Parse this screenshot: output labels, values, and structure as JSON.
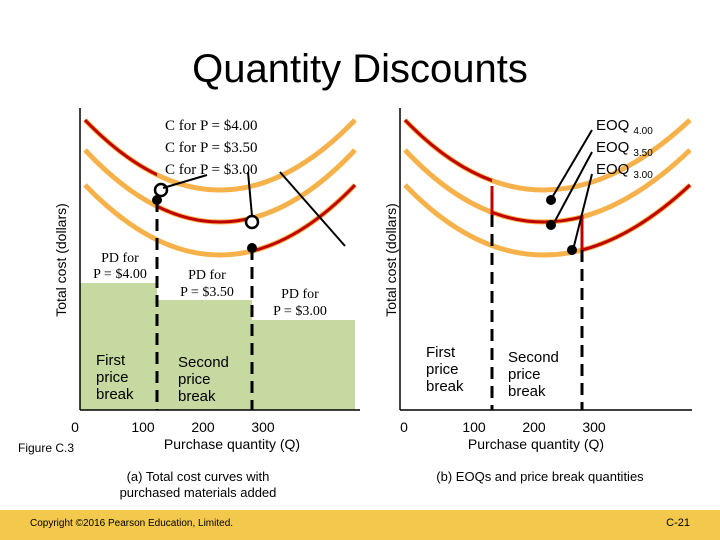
{
  "title": "Quantity Discounts",
  "figure_label": "Figure C.3",
  "panel_a": {
    "y_axis_label": "Total cost (dollars)",
    "curve_labels": [
      "C for P = $4.00",
      "C for P = $3.50",
      "C for P = $3.00"
    ],
    "pd_labels": [
      [
        "PD for",
        "P = $4.00"
      ],
      [
        "PD for",
        "P = $3.50"
      ],
      [
        "PD for",
        "P = $3.00"
      ]
    ],
    "first_break": [
      "First",
      "price",
      "break"
    ],
    "second_break": [
      "Second",
      "price",
      "break"
    ],
    "x_ticks": [
      "0",
      "100",
      "200",
      "300"
    ],
    "x_axis_label": "Purchase quantity (Q)",
    "caption": [
      "(a) Total cost curves with",
      "purchased materials added"
    ]
  },
  "panel_b": {
    "y_axis_label": "Total cost (dollars)",
    "eoq_labels": [
      {
        "text": "EOQ",
        "sub": "4.00"
      },
      {
        "text": "EOQ",
        "sub": "3.50"
      },
      {
        "text": "EOQ",
        "sub": "3.00"
      }
    ],
    "first_break": [
      "First",
      "price",
      "break"
    ],
    "second_break": [
      "Second",
      "price",
      "break"
    ],
    "x_ticks": [
      "0",
      "100",
      "200",
      "300"
    ],
    "x_axis_label": "Purchase quantity (Q)",
    "caption": "(b) EOQs and price break quantities"
  },
  "footer": {
    "copyright": "Copyright ©2016 Pearson Education, Limited.",
    "page": "C-21"
  }
}
